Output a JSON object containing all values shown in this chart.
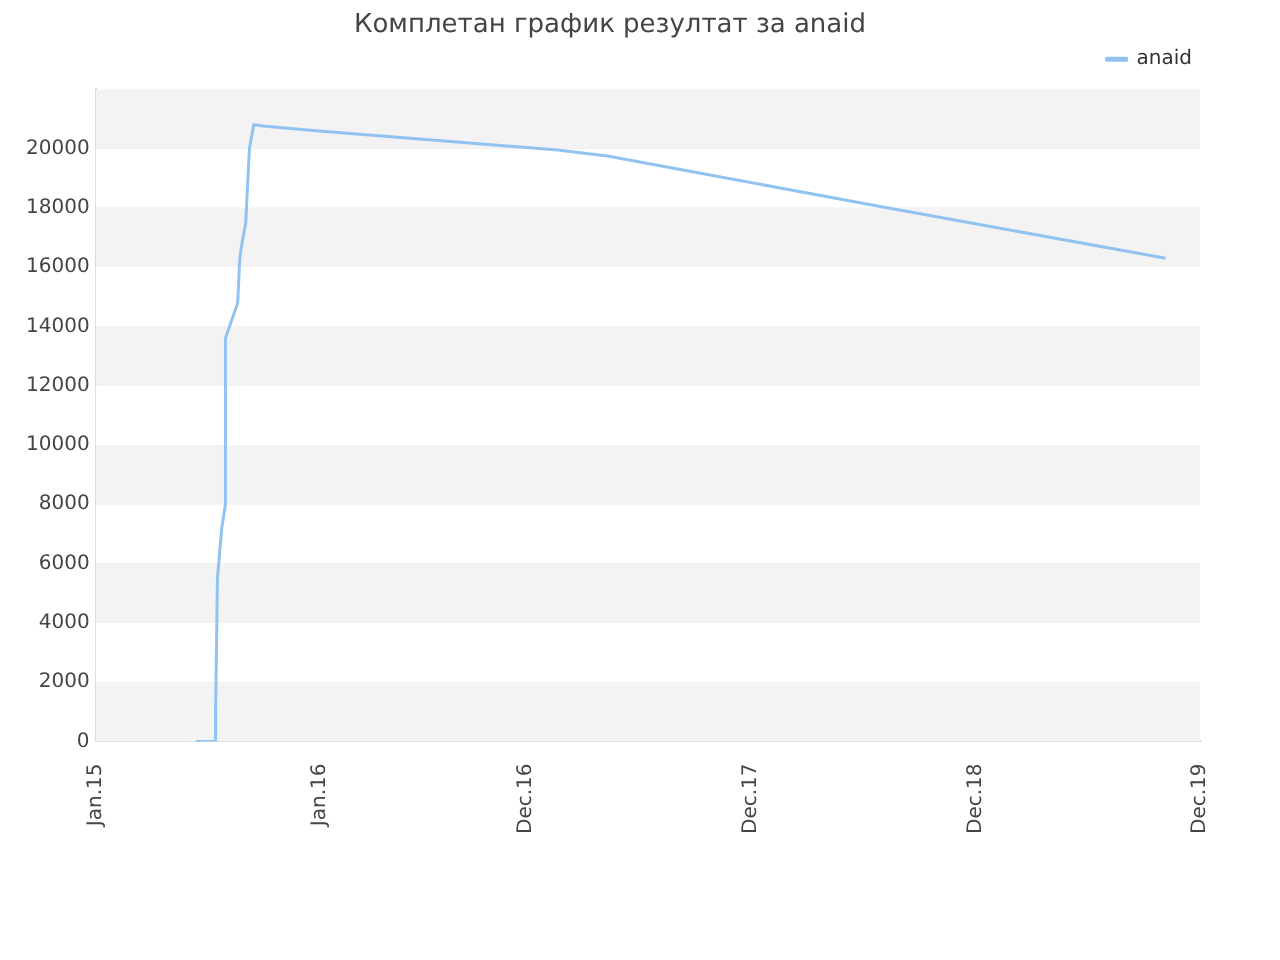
{
  "chart_data": {
    "type": "line",
    "title": "Комплетан график резултат за anaid",
    "x": [
      "2015-06-13",
      "2015-07-15",
      "2015-07-15",
      "2015-07-18",
      "2015-07-25",
      "2015-07-31",
      "2015-07-31",
      "2015-08-20",
      "2015-08-23",
      "2015-08-26",
      "2015-09-02",
      "2015-09-08",
      "2015-09-15",
      "2015-10-04",
      "2015-12-25",
      "2017-01-21",
      "2017-04-12",
      "2018-06-27",
      "2019-10-06"
    ],
    "series": [
      {
        "name": "anaid",
        "color": "#90c3f0",
        "values": [
          0,
          0,
          1000,
          5500,
          7200,
          8000,
          13600,
          14800,
          16200,
          16700,
          17500,
          20000,
          20800,
          20750,
          20600,
          19950,
          19750,
          18050,
          16300
        ]
      }
    ],
    "xlim": [
      "2015-01-01",
      "2019-12-01"
    ],
    "xticks": [
      {
        "value": "2015-01-01",
        "label": "Jan.15"
      },
      {
        "value": "2016-01-01",
        "label": "Jan.16"
      },
      {
        "value": "2016-12-01",
        "label": "Dec.16"
      },
      {
        "value": "2017-12-01",
        "label": "Dec.17"
      },
      {
        "value": "2018-12-01",
        "label": "Dec.18"
      },
      {
        "value": "2019-12-01",
        "label": "Dec.19"
      }
    ],
    "ylim": [
      0,
      22000
    ],
    "yticks": [
      0,
      2000,
      4000,
      6000,
      8000,
      10000,
      12000,
      14000,
      16000,
      18000,
      20000
    ],
    "grid": "y",
    "legend": "top right",
    "marker": "none"
  }
}
